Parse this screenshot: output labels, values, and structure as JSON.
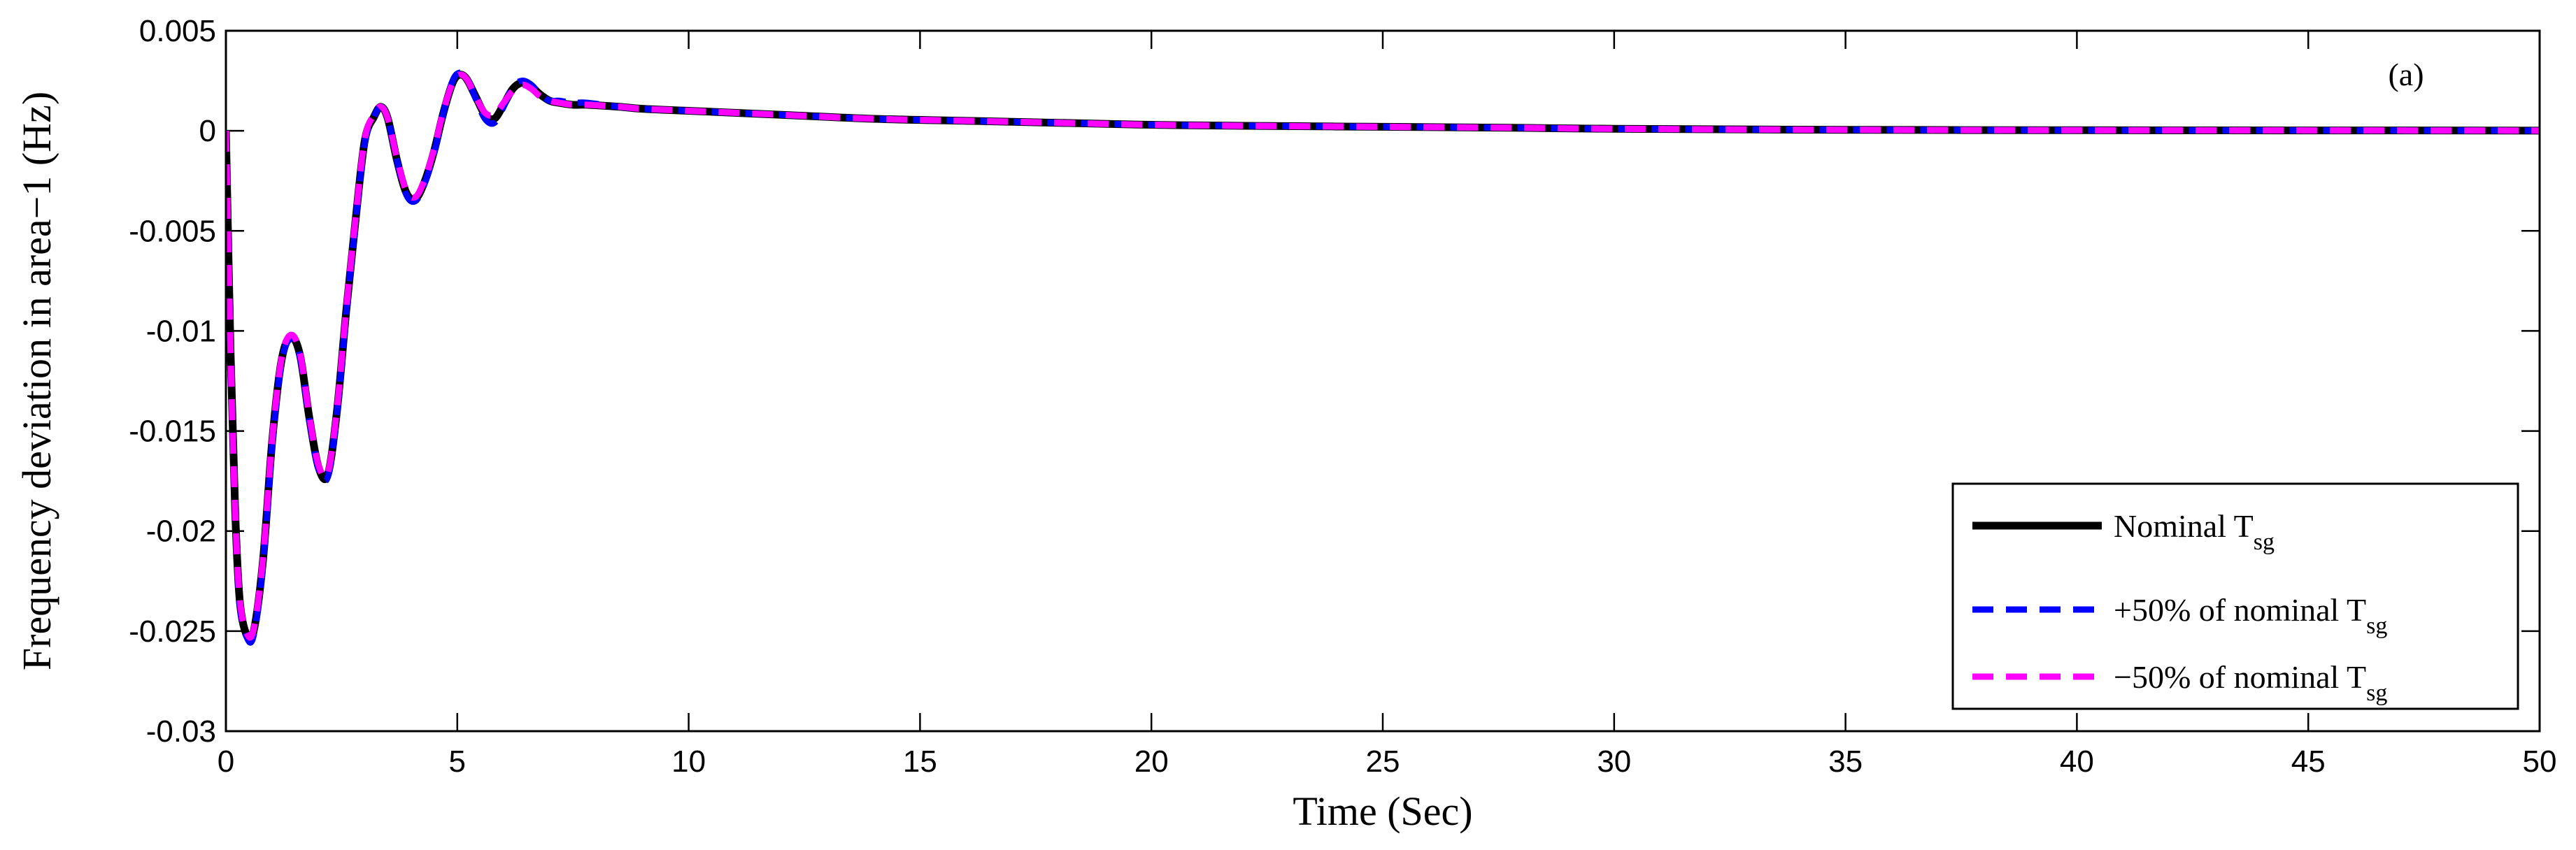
{
  "chart_data": {
    "type": "line",
    "xlabel": "Time (Sec)",
    "ylabel": "Frequency deviation in area−1 (Hz)",
    "annotation": "(a)",
    "xlim": [
      0,
      50
    ],
    "ylim": [
      -0.03,
      0.005
    ],
    "x_ticks": [
      0,
      5,
      10,
      15,
      20,
      25,
      30,
      35,
      40,
      45,
      50
    ],
    "y_ticks": [
      0.005,
      0,
      -0.005,
      -0.01,
      -0.015,
      -0.02,
      -0.025,
      -0.03
    ],
    "x_tick_labels": [
      "0",
      "5",
      "10",
      "15",
      "20",
      "25",
      "30",
      "35",
      "40",
      "45",
      "50"
    ],
    "y_tick_labels": [
      "0.005",
      "0",
      "-0.005",
      "-0.01",
      "-0.015",
      "-0.02",
      "-0.025",
      "-0.03"
    ],
    "grid": false,
    "legend_position": "bottom-right",
    "series": [
      {
        "name": "Nominal T",
        "name_sub": "sg",
        "color": "#000000",
        "style": "solid",
        "x": [
          0,
          0.1,
          0.2,
          0.3,
          0.45,
          0.6,
          0.8,
          1.0,
          1.2,
          1.4,
          1.6,
          1.8,
          2.0,
          2.2,
          2.4,
          2.6,
          2.8,
          3.0,
          3.2,
          3.35,
          3.5,
          3.7,
          3.9,
          4.1,
          4.3,
          4.5,
          4.7,
          4.9,
          5.05,
          5.2,
          5.4,
          5.6,
          5.8,
          6.0,
          6.2,
          6.4,
          6.6,
          6.8,
          7.0,
          7.2,
          7.5,
          7.8,
          8.5,
          9,
          10,
          12,
          14,
          16,
          18,
          20,
          22,
          25,
          28,
          30,
          35,
          40,
          45,
          50
        ],
        "y": [
          0,
          -0.011,
          -0.019,
          -0.0235,
          -0.0252,
          -0.025,
          -0.0215,
          -0.0155,
          -0.0115,
          -0.0103,
          -0.0112,
          -0.0143,
          -0.0168,
          -0.0172,
          -0.014,
          -0.009,
          -0.0045,
          -0.0005,
          0.0007,
          0.0012,
          0.0006,
          -0.0015,
          -0.0031,
          -0.0034,
          -0.0025,
          -0.001,
          0.0009,
          0.0024,
          0.0028,
          0.0026,
          0.0017,
          0.0008,
          0.0006,
          0.0013,
          0.0021,
          0.0024,
          0.0022,
          0.0018,
          0.0015,
          0.0014,
          0.0013,
          0.0013,
          0.0012,
          0.0011,
          0.001,
          0.0008,
          0.0006,
          0.0005,
          0.0004,
          0.0003,
          0.00025,
          0.0002,
          0.00015,
          0.0001,
          5e-05,
          3e-05,
          2e-05,
          1e-05
        ]
      },
      {
        "name": "+50% of nominal T",
        "name_sub": "sg",
        "color": "#0000ff",
        "style": "dashed",
        "x": [
          0,
          0.1,
          0.2,
          0.3,
          0.45,
          0.6,
          0.8,
          1.0,
          1.2,
          1.4,
          1.6,
          1.8,
          2.0,
          2.2,
          2.4,
          2.6,
          2.8,
          3.0,
          3.2,
          3.35,
          3.5,
          3.7,
          3.9,
          4.1,
          4.3,
          4.5,
          4.7,
          4.9,
          5.05,
          5.2,
          5.4,
          5.6,
          5.8,
          6.0,
          6.2,
          6.4,
          6.6,
          6.8,
          7.0,
          7.2,
          7.5,
          7.8,
          8.5,
          9,
          10,
          12,
          14,
          16,
          18,
          20,
          22,
          25,
          28,
          30,
          35,
          40,
          45,
          50
        ],
        "y": [
          0,
          -0.011,
          -0.019,
          -0.0237,
          -0.0253,
          -0.0252,
          -0.0217,
          -0.0157,
          -0.0116,
          -0.0104,
          -0.0113,
          -0.0144,
          -0.0169,
          -0.0173,
          -0.0141,
          -0.0091,
          -0.0046,
          -0.0006,
          0.0007,
          0.0012,
          0.0006,
          -0.0015,
          -0.0032,
          -0.0035,
          -0.0026,
          -0.0011,
          0.0009,
          0.0025,
          0.0029,
          0.0027,
          0.0016,
          0.0006,
          0.0004,
          0.0012,
          0.0022,
          0.0025,
          0.0023,
          0.0018,
          0.0015,
          0.0015,
          0.0014,
          0.0014,
          0.0012,
          0.0011,
          0.001,
          0.0008,
          0.0006,
          0.0005,
          0.0004,
          0.0003,
          0.00025,
          0.0002,
          0.00015,
          0.0001,
          5e-05,
          3e-05,
          2e-05,
          1e-05
        ]
      },
      {
        "name": "−50% of nominal T",
        "name_sub": "sg",
        "color": "#ff00ff",
        "style": "dashed",
        "x": [
          0,
          0.1,
          0.2,
          0.3,
          0.45,
          0.6,
          0.8,
          1.0,
          1.2,
          1.4,
          1.6,
          1.8,
          2.0,
          2.2,
          2.4,
          2.6,
          2.8,
          3.0,
          3.2,
          3.35,
          3.5,
          3.7,
          3.9,
          4.1,
          4.3,
          4.5,
          4.7,
          4.9,
          5.05,
          5.2,
          5.4,
          5.6,
          5.8,
          6.0,
          6.2,
          6.4,
          6.6,
          6.8,
          7.0,
          7.2,
          7.5,
          7.8,
          8.5,
          9,
          10,
          12,
          14,
          16,
          18,
          20,
          22,
          25,
          28,
          30,
          35,
          40,
          45,
          50
        ],
        "y": [
          0,
          -0.011,
          -0.019,
          -0.0234,
          -0.0251,
          -0.0249,
          -0.0214,
          -0.0154,
          -0.0114,
          -0.0102,
          -0.0111,
          -0.0142,
          -0.0167,
          -0.0171,
          -0.0139,
          -0.0089,
          -0.0044,
          -0.0004,
          0.0008,
          0.0012,
          0.0006,
          -0.0014,
          -0.003,
          -0.0033,
          -0.0024,
          -0.0009,
          0.001,
          0.0024,
          0.0028,
          0.0026,
          0.0017,
          0.0009,
          0.0008,
          0.0014,
          0.002,
          0.0023,
          0.0021,
          0.0017,
          0.0015,
          0.0014,
          0.0013,
          0.0013,
          0.0012,
          0.0011,
          0.001,
          0.0008,
          0.0006,
          0.0005,
          0.0004,
          0.0003,
          0.00025,
          0.0002,
          0.00015,
          0.0001,
          5e-05,
          3e-05,
          2e-05,
          1e-05
        ]
      }
    ]
  }
}
